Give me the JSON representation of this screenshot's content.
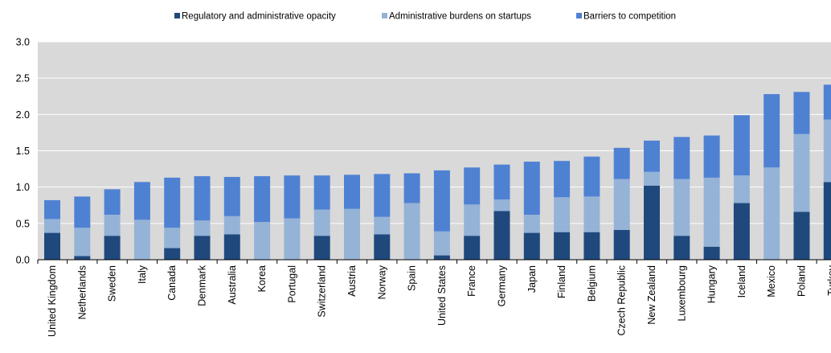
{
  "chart_data": {
    "type": "bar",
    "stacked": true,
    "categories": [
      "United Kingdom",
      "Netherlands",
      "Sweden",
      "Italy",
      "Canada",
      "Denmark",
      "Australia",
      "Korea",
      "Portugal",
      "Switzerland",
      "Austria",
      "Norway",
      "Spain",
      "United States",
      "France",
      "Germany",
      "Japan",
      "Finland",
      "Belgium",
      "Czech Republic",
      "New Zealand",
      "Luxembourg",
      "Hungary",
      "Iceland",
      "Mexico",
      "Poland",
      "Turkey"
    ],
    "series": [
      {
        "name": "Regulatory and administrative opacity",
        "color": "#1f497d",
        "values": [
          0.37,
          0.05,
          0.33,
          0.0,
          0.16,
          0.33,
          0.35,
          0.0,
          0.0,
          0.33,
          0.0,
          0.35,
          0.0,
          0.06,
          0.33,
          0.67,
          0.37,
          0.38,
          0.38,
          0.41,
          1.02,
          0.33,
          0.18,
          0.78,
          0.0,
          0.66,
          1.07
        ]
      },
      {
        "name": "Administrative burdens on startups",
        "color": "#95b3d7",
        "values": [
          0.19,
          0.39,
          0.29,
          0.55,
          0.28,
          0.21,
          0.25,
          0.52,
          0.57,
          0.36,
          0.7,
          0.24,
          0.78,
          0.33,
          0.43,
          0.16,
          0.25,
          0.48,
          0.49,
          0.7,
          0.19,
          0.78,
          0.95,
          0.38,
          1.27,
          1.07,
          0.86
        ]
      },
      {
        "name": "Barriers to competition",
        "color": "#4f81d3",
        "values": [
          0.26,
          0.43,
          0.35,
          0.52,
          0.69,
          0.61,
          0.54,
          0.63,
          0.59,
          0.47,
          0.47,
          0.59,
          0.41,
          0.84,
          0.51,
          0.48,
          0.73,
          0.5,
          0.55,
          0.43,
          0.43,
          0.58,
          0.58,
          0.83,
          1.01,
          0.58,
          0.48
        ]
      }
    ],
    "ylim": [
      0,
      3.0
    ],
    "yticks": [
      "0.0",
      "0.5",
      "1.0",
      "1.5",
      "2.0",
      "2.5",
      "3.0"
    ],
    "grid": true,
    "legend_position": "top",
    "background_color": "#d9d9d9",
    "gridline_color": "#ffffff"
  }
}
